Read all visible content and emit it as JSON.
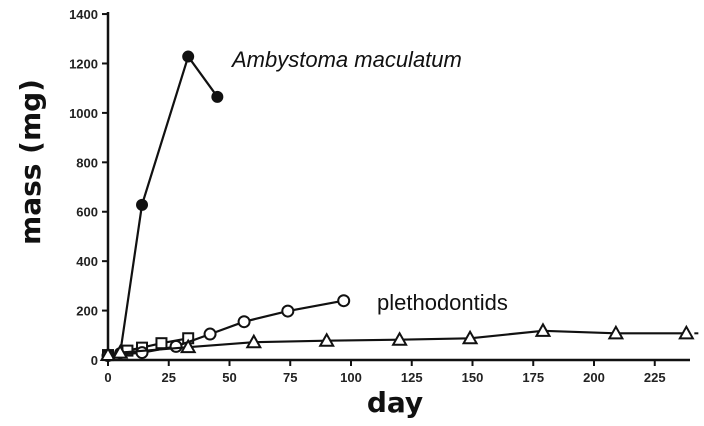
{
  "chart_data": {
    "type": "line",
    "xlabel": "day",
    "ylabel": "mass (mg)",
    "xlim": [
      0,
      240
    ],
    "ylim": [
      0,
      1400
    ],
    "xticks": [
      "0",
      "25",
      "50",
      "75",
      "100",
      "125",
      "150",
      "175",
      "200",
      "225"
    ],
    "yticks": [
      "0",
      "200",
      "400",
      "600",
      "800",
      "1000",
      "1200",
      "1400"
    ],
    "grid": false,
    "annotations": [
      "Ambystoma maculatum",
      "plethodontids"
    ],
    "series": [
      {
        "marker": "filled-circle",
        "x": [
          0,
          5,
          14,
          33,
          45
        ],
        "y": [
          18,
          28,
          628,
          1228,
          1065
        ]
      },
      {
        "marker": "open-square",
        "x": [
          0,
          8,
          14,
          22,
          33
        ],
        "y": [
          20,
          38,
          50,
          68,
          88
        ]
      },
      {
        "marker": "open-circle",
        "x": [
          0,
          14,
          28,
          42,
          56,
          74,
          97
        ],
        "y": [
          18,
          30,
          55,
          105,
          155,
          198,
          240
        ]
      },
      {
        "marker": "open-triangle",
        "x": [
          0,
          5,
          33,
          60,
          90,
          120,
          149,
          179,
          209,
          238
        ],
        "y": [
          20,
          30,
          52,
          72,
          78,
          82,
          88,
          118,
          108,
          108
        ]
      }
    ]
  }
}
